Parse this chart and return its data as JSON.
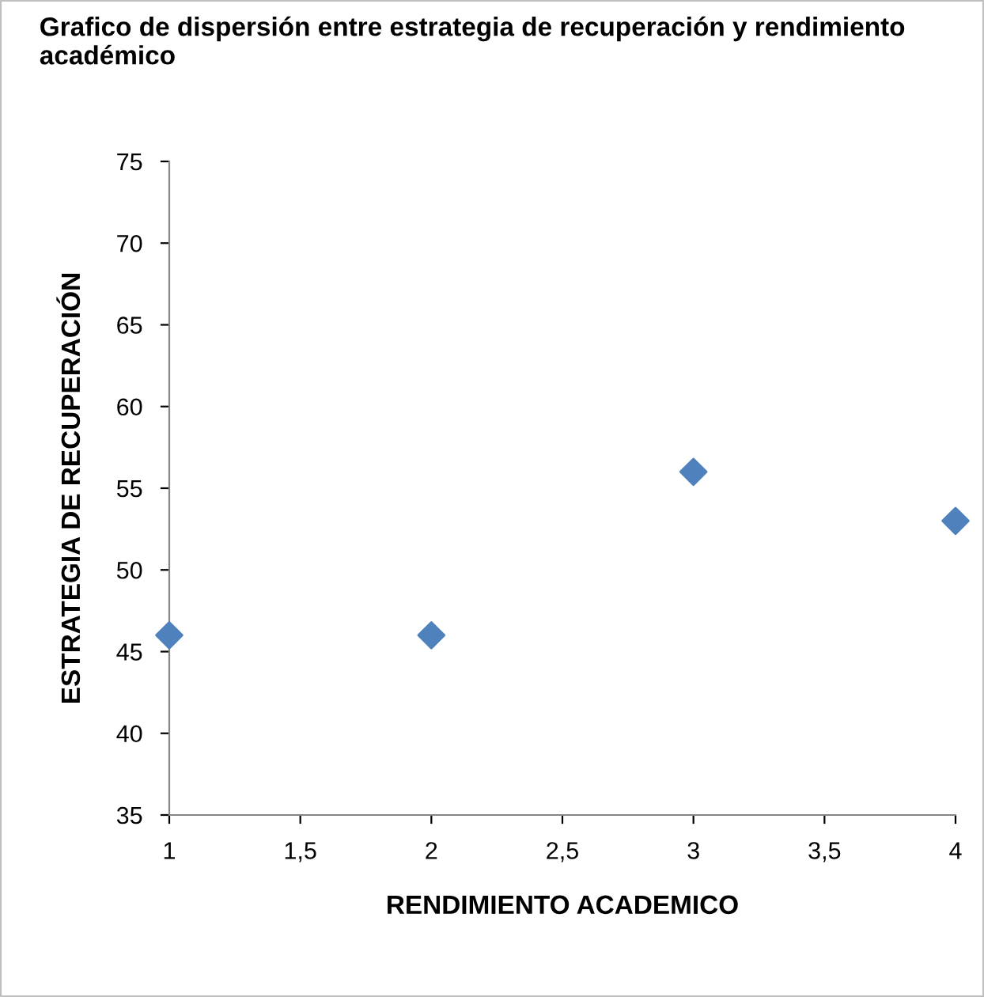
{
  "chart_data": {
    "type": "scatter",
    "title": "Grafico de dispersión entre estrategia de recuperación y rendimiento académico",
    "xlabel": "RENDIMIENTO ACADEMICO",
    "ylabel": "ESTRATEGIA DE RECUPERACIÓN",
    "x": [
      1,
      2,
      3,
      4
    ],
    "series": [
      {
        "color": "#4f81bd",
        "values": [
          46,
          46,
          56,
          53
        ]
      }
    ],
    "marker": "diamond",
    "xlim": [
      1,
      4
    ],
    "xticks": [
      1,
      {
        "value": 1.5,
        "label": "1,5"
      },
      2,
      {
        "value": 2.5,
        "label": "2,5"
      },
      3,
      {
        "value": 3.5,
        "label": "3,5"
      },
      4
    ],
    "ylim": [
      35,
      75
    ],
    "yticks": [
      35,
      40,
      45,
      50,
      55,
      60,
      65,
      70,
      75
    ],
    "grid": false,
    "legend": false
  }
}
